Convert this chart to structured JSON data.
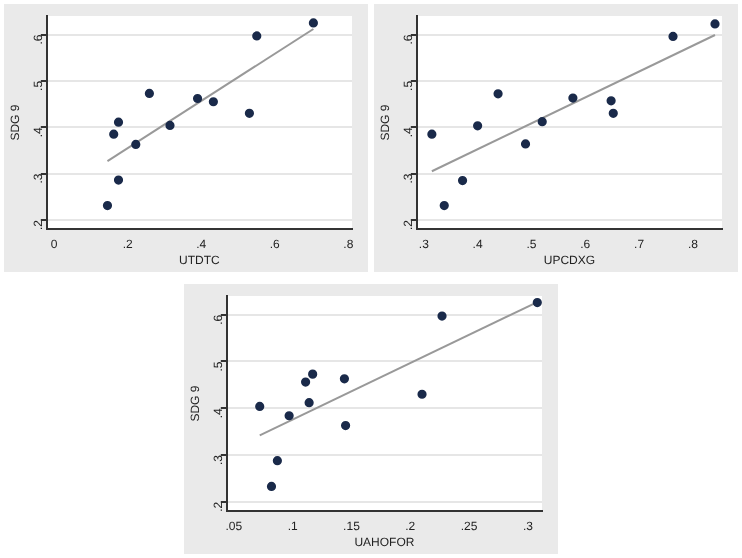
{
  "chart_data": [
    {
      "type": "scatter",
      "xlabel": "UTDTC",
      "ylabel": "SDG 9",
      "xlim": [
        -0.02,
        0.81
      ],
      "ylim": [
        0.18,
        0.64
      ],
      "xticks": [
        {
          "value": 0,
          "label": "0"
        },
        {
          "value": 0.2,
          "label": ".2"
        },
        {
          "value": 0.4,
          "label": ".4"
        },
        {
          "value": 0.6,
          "label": ".6"
        },
        {
          "value": 0.8,
          "label": ".8"
        }
      ],
      "yticks": [
        {
          "value": 0.2,
          "label": ".2"
        },
        {
          "value": 0.3,
          "label": ".3"
        },
        {
          "value": 0.4,
          "label": ".4"
        },
        {
          "value": 0.5,
          "label": ".5"
        },
        {
          "value": 0.6,
          "label": ".6"
        }
      ],
      "grid": "y",
      "series": [
        {
          "color": "#1a2a4a",
          "marker": "circle",
          "x": [
            0.145,
            0.162,
            0.175,
            0.175,
            0.222,
            0.259,
            0.315,
            0.39,
            0.433,
            0.531,
            0.551,
            0.705
          ],
          "values": [
            0.231,
            0.385,
            0.411,
            0.286,
            0.363,
            0.473,
            0.404,
            0.462,
            0.455,
            0.43,
            0.597,
            0.625
          ]
        },
        {
          "type": "line",
          "color": "#999999",
          "marker": "none",
          "x": [
            0.145,
            0.705
          ],
          "values": [
            0.327,
            0.612
          ]
        }
      ]
    },
    {
      "type": "scatter",
      "xlabel": "UPCDXG",
      "ylabel": "SDG 9",
      "xlim": [
        0.287,
        0.854
      ],
      "ylim": [
        0.18,
        0.64
      ],
      "xticks": [
        {
          "value": 0.3,
          "label": ".3"
        },
        {
          "value": 0.4,
          "label": ".4"
        },
        {
          "value": 0.5,
          "label": ".5"
        },
        {
          "value": 0.6,
          "label": ".6"
        },
        {
          "value": 0.7,
          "label": ".7"
        },
        {
          "value": 0.8,
          "label": ".8"
        }
      ],
      "yticks": [
        {
          "value": 0.2,
          "label": ".2"
        },
        {
          "value": 0.3,
          "label": ".3"
        },
        {
          "value": 0.4,
          "label": ".4"
        },
        {
          "value": 0.5,
          "label": ".5"
        },
        {
          "value": 0.6,
          "label": ".6"
        }
      ],
      "grid": "y",
      "series": [
        {
          "color": "#1a2a4a",
          "marker": "circle",
          "x": [
            0.315,
            0.338,
            0.372,
            0.4,
            0.438,
            0.489,
            0.52,
            0.577,
            0.648,
            0.652,
            0.763,
            0.841
          ],
          "values": [
            0.385,
            0.231,
            0.285,
            0.403,
            0.472,
            0.364,
            0.412,
            0.463,
            0.457,
            0.43,
            0.596,
            0.623
          ]
        },
        {
          "type": "line",
          "color": "#999999",
          "marker": "none",
          "x": [
            0.315,
            0.841
          ],
          "values": [
            0.305,
            0.599
          ]
        }
      ]
    },
    {
      "type": "scatter",
      "xlabel": "UAHOFOR",
      "ylabel": "SDG 9",
      "xlim": [
        0.044,
        0.312
      ],
      "ylim": [
        0.18,
        0.64
      ],
      "xticks": [
        {
          "value": 0.05,
          "label": ".05"
        },
        {
          "value": 0.1,
          "label": ".1"
        },
        {
          "value": 0.15,
          "label": ".15"
        },
        {
          "value": 0.2,
          "label": ".2"
        },
        {
          "value": 0.25,
          "label": ".25"
        },
        {
          "value": 0.3,
          "label": ".3"
        }
      ],
      "yticks": [
        {
          "value": 0.2,
          "label": ".2"
        },
        {
          "value": 0.3,
          "label": ".3"
        },
        {
          "value": 0.4,
          "label": ".4"
        },
        {
          "value": 0.5,
          "label": ".5"
        },
        {
          "value": 0.6,
          "label": ".6"
        }
      ],
      "grid": "y",
      "series": [
        {
          "color": "#1a2a4a",
          "marker": "circle",
          "x": [
            0.072,
            0.082,
            0.087,
            0.097,
            0.111,
            0.114,
            0.117,
            0.144,
            0.145,
            0.21,
            0.227,
            0.308
          ],
          "values": [
            0.404,
            0.233,
            0.288,
            0.384,
            0.456,
            0.412,
            0.473,
            0.463,
            0.363,
            0.43,
            0.597,
            0.626
          ]
        },
        {
          "type": "line",
          "color": "#999999",
          "marker": "none",
          "x": [
            0.072,
            0.308
          ],
          "values": [
            0.342,
            0.627
          ]
        }
      ]
    }
  ]
}
